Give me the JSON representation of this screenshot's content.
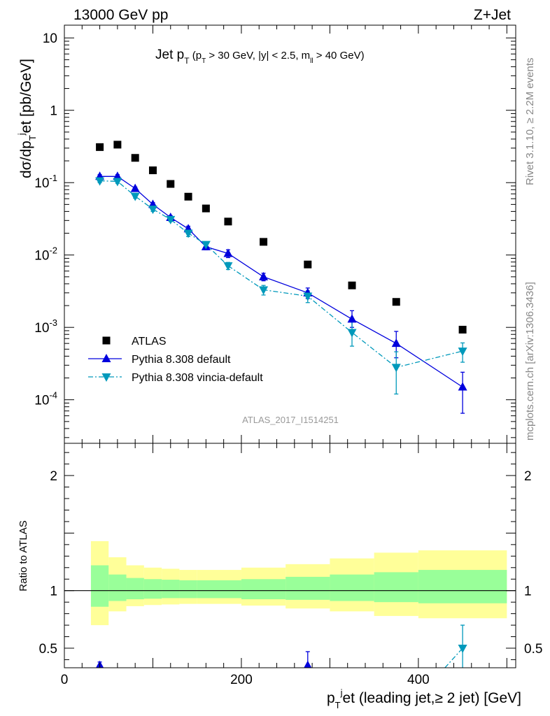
{
  "header": {
    "left": "13000 GeV pp",
    "right": "Z+Jet"
  },
  "side_labels": {
    "top": "Rivet 3.1.10, ≥ 2.2M events",
    "bottom": "mcplots.cern.ch [arXiv:1306.3436]"
  },
  "watermark": "ATLAS_2017_I1514251",
  "colors": {
    "data": "#000000",
    "default": "#0000dd",
    "vincia": "#0099bb",
    "band_inner": "#99ff99",
    "band_outer": "#ffff99"
  },
  "chart_data": [
    {
      "type": "scatter",
      "panel": "main",
      "title": "Jet pT (pT > 30 GeV, |y| < 2.5, mll > 40 GeV)",
      "ylabel": "dσ/dpT jet [pb/GeV]",
      "yscale": "log",
      "ylim": [
        2.5e-05,
        15
      ],
      "xlim": [
        0,
        510
      ],
      "ytick_labels": [
        "10",
        "1",
        "10^-1",
        "10^-2",
        "10^-3",
        "10^-4"
      ],
      "legend": "middle-left",
      "series": [
        {
          "name": "ATLAS",
          "marker": "square",
          "x": [
            40,
            60,
            80,
            100,
            120,
            140,
            160,
            185,
            225,
            275,
            325,
            375,
            450
          ],
          "y": [
            0.31,
            0.335,
            0.22,
            0.148,
            0.096,
            0.064,
            0.044,
            0.029,
            0.0152,
            0.0074,
            0.0038,
            0.00225,
            0.00093
          ]
        },
        {
          "name": "Pythia 8.308 default",
          "marker": "triangle-up",
          "line": "solid",
          "x": [
            40,
            60,
            80,
            100,
            120,
            140,
            160,
            185,
            225,
            275,
            325,
            375,
            450
          ],
          "y": [
            0.122,
            0.122,
            0.083,
            0.05,
            0.033,
            0.023,
            0.013,
            0.0105,
            0.005,
            0.003,
            0.0013,
            0.0006,
            0.00015
          ],
          "err_lo": [
            0.115,
            0.115,
            0.079,
            0.047,
            0.031,
            0.021,
            0.0118,
            0.0092,
            0.0044,
            0.0025,
            0.001,
            0.00038,
            6.5e-05
          ],
          "err_hi": [
            0.129,
            0.129,
            0.087,
            0.053,
            0.035,
            0.025,
            0.0142,
            0.0118,
            0.0056,
            0.0035,
            0.0017,
            0.00088,
            0.00024
          ]
        },
        {
          "name": "Pythia 8.308 vincia-default",
          "marker": "triangle-down",
          "line": "dash-dot",
          "x": [
            40,
            60,
            80,
            100,
            120,
            140,
            160,
            185,
            225,
            275,
            325,
            375,
            450
          ],
          "y": [
            0.106,
            0.104,
            0.065,
            0.043,
            0.031,
            0.02,
            0.014,
            0.0071,
            0.0033,
            0.0027,
            0.00085,
            0.00028,
            0.00047
          ],
          "err_lo": [
            0.1,
            0.098,
            0.061,
            0.04,
            0.029,
            0.018,
            0.0128,
            0.0063,
            0.0028,
            0.0022,
            0.00055,
            0.00012,
            0.00033
          ],
          "err_hi": [
            0.112,
            0.11,
            0.069,
            0.046,
            0.033,
            0.022,
            0.0152,
            0.0079,
            0.0038,
            0.0032,
            0.0012,
            0.00046,
            0.00061
          ]
        }
      ]
    },
    {
      "type": "line",
      "panel": "ratio",
      "ylabel": "Ratio to ATLAS",
      "xlabel": "pT jet (leading jet,≥ 2 jet) [GeV]",
      "xlim": [
        0,
        510
      ],
      "ylim": [
        0.33,
        2.28
      ],
      "x_ticks": [
        0,
        200,
        400
      ],
      "x_tick_labels": [
        "0",
        "200",
        "400"
      ],
      "y_ticks": [
        0.5,
        1,
        2
      ],
      "y_tick_labels": [
        "0.5",
        "1",
        "2"
      ],
      "bands": {
        "edges": [
          30,
          50,
          70,
          90,
          110,
          130,
          150,
          170,
          200,
          250,
          300,
          350,
          400,
          500
        ],
        "inner_lo": [
          0.86,
          0.91,
          0.925,
          0.93,
          0.935,
          0.935,
          0.935,
          0.935,
          0.925,
          0.92,
          0.91,
          0.9,
          0.89
        ],
        "inner_hi": [
          1.22,
          1.14,
          1.11,
          1.1,
          1.095,
          1.09,
          1.09,
          1.09,
          1.1,
          1.12,
          1.14,
          1.16,
          1.18
        ],
        "outer_lo": [
          0.7,
          0.82,
          0.865,
          0.875,
          0.88,
          0.885,
          0.885,
          0.885,
          0.87,
          0.845,
          0.82,
          0.78,
          0.76
        ],
        "outer_hi": [
          1.43,
          1.29,
          1.22,
          1.2,
          1.19,
          1.18,
          1.18,
          1.18,
          1.2,
          1.23,
          1.28,
          1.33,
          1.35
        ]
      },
      "series": [
        {
          "name": "Pythia 8.308 default",
          "x": [
            40,
            275
          ],
          "y": [
            0.35,
            0.35
          ],
          "err_lo": [
            0.33,
            0.33
          ],
          "err_hi": [
            0.38,
            0.47
          ]
        },
        {
          "name": "Pythia 8.308 vincia-default",
          "x": [
            450
          ],
          "y": [
            0.5
          ],
          "err_lo": [
            0.33
          ],
          "err_hi": [
            0.7
          ],
          "incoming_from": [
            430,
            0.33
          ]
        }
      ]
    }
  ]
}
